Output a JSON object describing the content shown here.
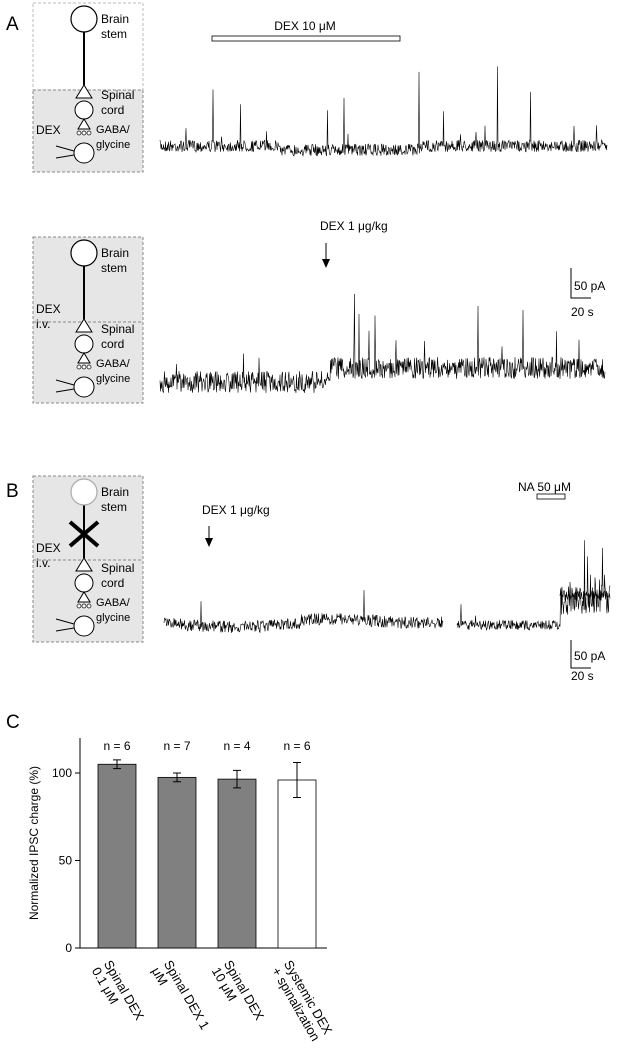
{
  "panels": {
    "A": {
      "label": "A",
      "top": {
        "drug": "DEX 10 μM",
        "diagram": {
          "brain": [
            "Brain",
            "stem"
          ],
          "spinal": [
            "Spinal",
            "cord"
          ],
          "inter": [
            "GABA/",
            "glycine"
          ],
          "drug": [
            "DEX"
          ]
        }
      },
      "bottom": {
        "drug": "DEX 1 μg/kg",
        "diagram": {
          "brain": [
            "Brain",
            "stem"
          ],
          "spinal": [
            "Spinal",
            "cord"
          ],
          "inter": [
            "GABA/",
            "glycine"
          ],
          "drug": [
            "DEX",
            "i.v."
          ]
        },
        "scale": {
          "y": "50 pA",
          "x": "20 s"
        }
      }
    },
    "B": {
      "label": "B",
      "drug": "DEX 1 μg/kg",
      "drug2": "NA 50 μM",
      "diagram": {
        "brain": [
          "Brain",
          "stem"
        ],
        "spinal": [
          "Spinal",
          "cord"
        ],
        "inter": [
          "GABA/",
          "glycine"
        ],
        "drug": [
          "DEX",
          "i.v."
        ]
      },
      "scale": {
        "y": "50 pA",
        "x": "20 s"
      }
    },
    "C": {
      "label": "C"
    }
  },
  "chart_data": {
    "type": "bar",
    "y_label": "Normalized IPSC charge (%)",
    "categories": [
      "Spinal DEX 0.1 μM",
      "Spinal DEX 1 μM",
      "Spinal DEX 10 μM",
      "Systemic DEX + spinalization"
    ],
    "values": [
      105,
      97.5,
      96.5,
      96
    ],
    "errors": [
      2.5,
      2.5,
      5,
      10
    ],
    "colors": [
      "#808080",
      "#808080",
      "#808080",
      "#ffffff"
    ],
    "annotations": [
      "n = 6",
      "n = 7",
      "n = 4",
      "n = 6"
    ],
    "ylim": [
      0,
      120
    ],
    "yticks": [
      0,
      50,
      100
    ]
  }
}
